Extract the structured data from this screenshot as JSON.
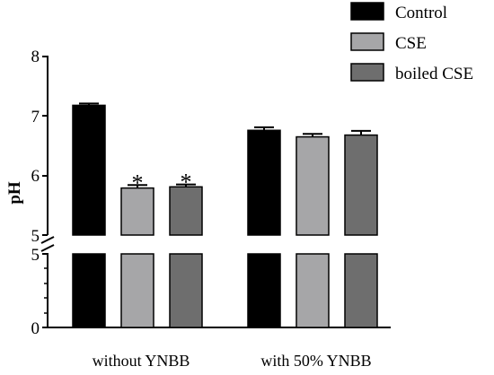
{
  "chart_data": {
    "type": "bar",
    "ylabel": "pH",
    "xlabel": "",
    "categories": [
      "without YNBB",
      "with 50% YNBB"
    ],
    "series": [
      {
        "name": "Control",
        "color": "#000000",
        "values": [
          7.18,
          6.76
        ],
        "errors": [
          0.03,
          0.05
        ]
      },
      {
        "name": "CSE",
        "color": "#a6a6a8",
        "values": [
          5.79,
          6.65
        ],
        "errors": [
          0.05,
          0.05
        ]
      },
      {
        "name": "boiled CSE",
        "color": "#6e6e6e",
        "values": [
          5.81,
          6.68
        ],
        "errors": [
          0.04,
          0.07
        ]
      }
    ],
    "annotations": [
      {
        "category": "without YNBB",
        "series": "CSE",
        "text": "*"
      },
      {
        "category": "without YNBB",
        "series": "boiled CSE",
        "text": "*"
      }
    ],
    "axis_break": {
      "upper_segment": [
        5,
        8
      ],
      "lower_segment": [
        0,
        5
      ]
    },
    "upper_ticks": [
      "5",
      "6",
      "7",
      "8"
    ],
    "lower_ticks": [
      "0",
      "5"
    ],
    "legend_position": "top-right",
    "grid": false
  }
}
